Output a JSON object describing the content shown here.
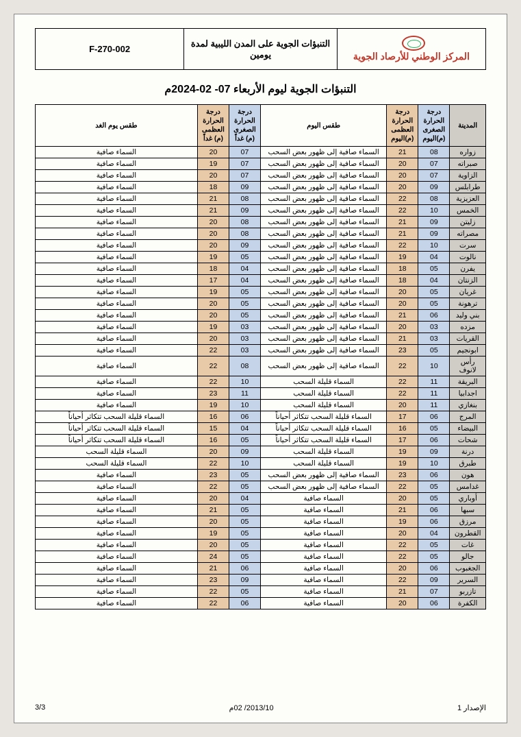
{
  "header": {
    "org_name": "المركز الوطني للأرصاد الجوية",
    "title": "التنبؤات الجوية على المدن الليبية لمدة يومين",
    "code": "F-270-002"
  },
  "main_title": "التنبؤات الجوية ليوم الأربعاء  07- 02-2024م",
  "columns": {
    "city": "المدينة",
    "min_today": "درجة الحرارة الصغرى (م)اليوم",
    "max_today": "درجة الحرارة العظمى (م)اليوم",
    "weather_today": "طقس اليوم",
    "min_tom": "درجة الحرارة الصغرى (م) غداً",
    "max_tom": "درجة الحرارة العظمى (م) غداً",
    "weather_tom": "طقس يوم الغد"
  },
  "colors": {
    "gray": "#d0cdc7",
    "blue": "#c5d4e8",
    "orange": "#e8c9a8",
    "white": "#fdfdfa",
    "brand_red": "#c0392b"
  },
  "rows": [
    {
      "city": "زواره",
      "min_t": "08",
      "max_t": "21",
      "wx_t": "السماء صافية  إلى ظهور بعض  السحب",
      "min_m": "07",
      "max_m": "20",
      "wx_m": "السماء صافية"
    },
    {
      "city": "صبراته",
      "min_t": "07",
      "max_t": "20",
      "wx_t": "السماء صافية  إلى ظهور بعض  السحب",
      "min_m": "07",
      "max_m": "19",
      "wx_m": "السماء صافية"
    },
    {
      "city": "الزاوية",
      "min_t": "07",
      "max_t": "20",
      "wx_t": "السماء صافية  إلى ظهور بعض  السحب",
      "min_m": "07",
      "max_m": "20",
      "wx_m": "السماء صافية"
    },
    {
      "city": "طرابلس",
      "min_t": "09",
      "max_t": "20",
      "wx_t": "السماء صافية إلى ظهور بعض  السحب",
      "min_m": "09",
      "max_m": "18",
      "wx_m": "السماء صافية"
    },
    {
      "city": "العزيزية",
      "min_t": "08",
      "max_t": "22",
      "wx_t": "السماء صافية  إلى ظهور بعض  السحب",
      "min_m": "08",
      "max_m": "21",
      "wx_m": "السماء صافية"
    },
    {
      "city": "الخمس",
      "min_t": "10",
      "max_t": "22",
      "wx_t": "السماء صافية  إلى ظهور بعض  السحب",
      "min_m": "09",
      "max_m": "21",
      "wx_m": "السماء صافية"
    },
    {
      "city": "زليتن",
      "min_t": "09",
      "max_t": "21",
      "wx_t": "السماء صافية  إلى ظهور بعض  السحب",
      "min_m": "08",
      "max_m": "20",
      "wx_m": "السماء صافية"
    },
    {
      "city": "مصراته",
      "min_t": "09",
      "max_t": "21",
      "wx_t": "السماء صافية  إلى ظهور بعض  السحب",
      "min_m": "08",
      "max_m": "20",
      "wx_m": "السماء صافية"
    },
    {
      "city": "سرت",
      "min_t": "10",
      "max_t": "22",
      "wx_t": "السماء صافية إلى ظهور بعض  السحب",
      "min_m": "09",
      "max_m": "20",
      "wx_m": "السماء صافية"
    },
    {
      "city": "نالوت",
      "min_t": "04",
      "max_t": "19",
      "wx_t": "السماء صافية  إلى ظهور بعض  السحب",
      "min_m": "05",
      "max_m": "19",
      "wx_m": "السماء صافية"
    },
    {
      "city": "يفرن",
      "min_t": "05",
      "max_t": "18",
      "wx_t": "السماء صافية إلى ظهور بعض  السحب",
      "min_m": "04",
      "max_m": "18",
      "wx_m": "السماء صافية"
    },
    {
      "city": "الزنتان",
      "min_t": "04",
      "max_t": "18",
      "wx_t": "السماء صافية إلى ظهور بعض  السحب",
      "min_m": "04",
      "max_m": "17",
      "wx_m": "السماء صافية"
    },
    {
      "city": "غريان",
      "min_t": "05",
      "max_t": "20",
      "wx_t": "السماء صافية إلى ظهور بعض  السحب",
      "min_m": "05",
      "max_m": "19",
      "wx_m": "السماء صافية"
    },
    {
      "city": "ترهونة",
      "min_t": "05",
      "max_t": "20",
      "wx_t": "السماء صافية إلى ظهور بعض  السحب",
      "min_m": "05",
      "max_m": "20",
      "wx_m": "السماء صافية"
    },
    {
      "city": "بني وليد",
      "min_t": "06",
      "max_t": "21",
      "wx_t": "السماء صافية إلى ظهور بعض  السحب",
      "min_m": "05",
      "max_m": "20",
      "wx_m": "السماء صافية"
    },
    {
      "city": "مزده",
      "min_t": "03",
      "max_t": "20",
      "wx_t": "السماء صافية إلى ظهور بعض  السحب",
      "min_m": "03",
      "max_m": "19",
      "wx_m": "السماء صافية"
    },
    {
      "city": "القريات",
      "min_t": "03",
      "max_t": "21",
      "wx_t": "السماء صافية إلى ظهور بعض  السحب",
      "min_m": "03",
      "max_m": "20",
      "wx_m": "السماء صافية"
    },
    {
      "city": "ابونجيم",
      "min_t": "05",
      "max_t": "23",
      "wx_t": "السماء صافية إلى ظهور بعض  السحب",
      "min_m": "03",
      "max_m": "22",
      "wx_m": "السماء صافية"
    },
    {
      "city": "رأس لانوف",
      "min_t": "10",
      "max_t": "22",
      "wx_t": "السماء صافية إلى ظهور بعض  السحب",
      "min_m": "08",
      "max_m": "22",
      "wx_m": "السماء صافية"
    },
    {
      "city": "البريقة",
      "min_t": "11",
      "max_t": "22",
      "wx_t": "السماء قليلة السحب",
      "min_m": "10",
      "max_m": "22",
      "wx_m": "السماء صافية"
    },
    {
      "city": "اجدابيا",
      "min_t": "11",
      "max_t": "22",
      "wx_t": "السماء قليلة السحب",
      "min_m": "11",
      "max_m": "23",
      "wx_m": "السماء صافية"
    },
    {
      "city": "بنغازي",
      "min_t": "11",
      "max_t": "20",
      "wx_t": "السماء قليلة السحب",
      "min_m": "10",
      "max_m": "19",
      "wx_m": "السماء صافية"
    },
    {
      "city": "المرج",
      "min_t": "06",
      "max_t": "17",
      "wx_t": "السماء قليلة السحب تتكاثر أحياناً",
      "min_m": "06",
      "max_m": "16",
      "wx_m": "السماء قليلة السحب تتكاثر أحياناً"
    },
    {
      "city": "البيضاء",
      "min_t": "05",
      "max_t": "16",
      "wx_t": "السماء قليلة السحب تتكاثر أحياناً",
      "min_m": "04",
      "max_m": "15",
      "wx_m": "السماء قليلة السحب تتكاثر أحياناً"
    },
    {
      "city": "شحات",
      "min_t": "06",
      "max_t": "17",
      "wx_t": "السماء قليلة السحب تتكاثر أحياناً",
      "min_m": "05",
      "max_m": "16",
      "wx_m": "السماء قليلة السحب تتكاثر أحياناً"
    },
    {
      "city": "درنة",
      "min_t": "09",
      "max_t": "19",
      "wx_t": "السماء قليلة السحب",
      "min_m": "09",
      "max_m": "20",
      "wx_m": "السماء قليلة السحب"
    },
    {
      "city": "طبرق",
      "min_t": "10",
      "max_t": "19",
      "wx_t": "السماء قليلة السحب",
      "min_m": "10",
      "max_m": "22",
      "wx_m": "السماء قليلة السحب"
    },
    {
      "city": "هون",
      "min_t": "06",
      "max_t": "23",
      "wx_t": "السماء صافية إلى ظهور بعض  السحب",
      "min_m": "05",
      "max_m": "23",
      "wx_m": "السماء صافية"
    },
    {
      "city": "غدامس",
      "min_t": "05",
      "max_t": "22",
      "wx_t": "السماء صافية إلى ظهور بعض  السحب",
      "min_m": "05",
      "max_m": "22",
      "wx_m": "السماء صافية"
    },
    {
      "city": "أوباري",
      "min_t": "05",
      "max_t": "20",
      "wx_t": "السماء صافية",
      "min_m": "04",
      "max_m": "20",
      "wx_m": "السماء صافية"
    },
    {
      "city": "سبها",
      "min_t": "06",
      "max_t": "21",
      "wx_t": "السماء صافية",
      "min_m": "05",
      "max_m": "21",
      "wx_m": "السماء صافية"
    },
    {
      "city": "مرزق",
      "min_t": "06",
      "max_t": "19",
      "wx_t": "السماء صافية",
      "min_m": "05",
      "max_m": "20",
      "wx_m": "السماء صافية"
    },
    {
      "city": "القطرون",
      "min_t": "04",
      "max_t": "20",
      "wx_t": "السماء صافية",
      "min_m": "05",
      "max_m": "19",
      "wx_m": "السماء صافية"
    },
    {
      "city": "غات",
      "min_t": "05",
      "max_t": "22",
      "wx_t": "السماء صافية",
      "min_m": "05",
      "max_m": "20",
      "wx_m": "السماء صافية"
    },
    {
      "city": "جالو",
      "min_t": "05",
      "max_t": "22",
      "wx_t": "السماء صافية",
      "min_m": "05",
      "max_m": "24",
      "wx_m": "السماء صافية"
    },
    {
      "city": "الجغبوب",
      "min_t": "06",
      "max_t": "20",
      "wx_t": "السماء صافية",
      "min_m": "06",
      "max_m": "21",
      "wx_m": "السماء صافية"
    },
    {
      "city": "السرير",
      "min_t": "09",
      "max_t": "22",
      "wx_t": "السماء صافية",
      "min_m": "09",
      "max_m": "23",
      "wx_m": "السماء صافية"
    },
    {
      "city": "تازربو",
      "min_t": "07",
      "max_t": "21",
      "wx_t": "السماء صافية",
      "min_m": "05",
      "max_m": "22",
      "wx_m": "السماء صافية"
    },
    {
      "city": "الكفرة",
      "min_t": "06",
      "max_t": "20",
      "wx_t": "السماء صافية",
      "min_m": "06",
      "max_m": "22",
      "wx_m": "السماء صافية"
    }
  ],
  "footer": {
    "issue": "الإصدار 1",
    "date": "2013/10/ 02م",
    "page": "3/3"
  }
}
